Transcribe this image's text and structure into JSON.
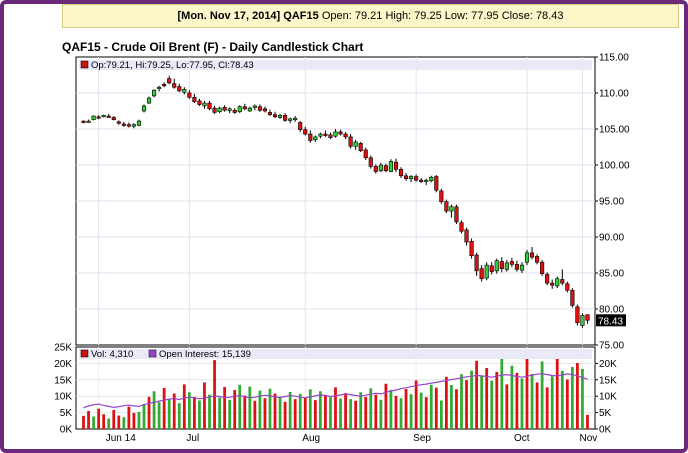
{
  "header": {
    "date": "[Mon. Nov 17, 2014]",
    "symbol": "QAF15",
    "open_label": "Open:",
    "open": "79.21",
    "high_label": "High:",
    "high": "79.25",
    "low_label": "Low:",
    "low": "77.95",
    "close_label": "Close:",
    "close": "78.43"
  },
  "chart_data": [
    {
      "type": "candlestick",
      "title": "QAF15 - Crude Oil Brent (F) - Daily Candlestick Chart",
      "legend": "Op:79.21, Hi:79.25, Lo:77.95, Cl:78.43",
      "last_price_label": "78.43",
      "ylim": [
        75,
        115
      ],
      "y_ticks": [
        "115.00",
        "110.00",
        "105.00",
        "100.00",
        "95.00",
        "90.00",
        "85.00",
        "80.00",
        "75.00"
      ],
      "x_tick_labels": [
        "Jun 14",
        "Jul",
        "Aug",
        "Sep",
        "Oct",
        "Nov"
      ],
      "colors": {
        "up": "#33cc33",
        "down": "#dd1111"
      },
      "ohlc": [
        [
          106.1,
          106.2,
          105.8,
          106.0
        ],
        [
          106.0,
          106.3,
          105.9,
          106.1
        ],
        [
          106.3,
          106.9,
          106.2,
          106.8
        ],
        [
          106.7,
          106.9,
          106.4,
          106.5
        ],
        [
          106.8,
          107.0,
          106.6,
          106.9
        ],
        [
          106.8,
          107.1,
          106.6,
          106.7
        ],
        [
          106.6,
          106.8,
          106.2,
          106.3
        ],
        [
          106.0,
          106.2,
          105.6,
          105.8
        ],
        [
          105.7,
          106.0,
          105.3,
          105.5
        ],
        [
          105.6,
          105.9,
          105.2,
          105.4
        ],
        [
          105.4,
          105.8,
          105.1,
          105.6
        ],
        [
          105.5,
          106.3,
          105.4,
          106.1
        ],
        [
          107.5,
          108.4,
          107.3,
          108.2
        ],
        [
          108.6,
          109.5,
          108.5,
          109.3
        ],
        [
          109.6,
          110.5,
          109.4,
          110.4
        ],
        [
          110.6,
          111.0,
          110.2,
          110.8
        ],
        [
          111.2,
          111.5,
          110.8,
          111.1
        ],
        [
          112.0,
          112.4,
          111.2,
          111.4
        ],
        [
          111.3,
          112.0,
          110.6,
          110.8
        ],
        [
          110.9,
          111.3,
          110.1,
          110.3
        ],
        [
          110.1,
          110.8,
          109.8,
          110.5
        ],
        [
          110.0,
          110.4,
          109.2,
          109.4
        ],
        [
          109.4,
          109.9,
          108.6,
          108.8
        ],
        [
          108.9,
          109.2,
          108.2,
          108.4
        ],
        [
          108.2,
          108.9,
          107.8,
          108.6
        ],
        [
          108.6,
          108.9,
          107.6,
          107.8
        ],
        [
          107.9,
          108.2,
          107.1,
          107.3
        ],
        [
          107.4,
          108.1,
          107.2,
          107.9
        ],
        [
          108.0,
          108.3,
          107.4,
          107.6
        ],
        [
          107.6,
          108.0,
          107.2,
          107.8
        ],
        [
          107.6,
          107.9,
          107.1,
          107.3
        ],
        [
          107.4,
          108.3,
          107.2,
          108.1
        ],
        [
          108.1,
          108.5,
          107.6,
          107.8
        ],
        [
          107.5,
          108.1,
          107.4,
          107.9
        ],
        [
          108.0,
          108.4,
          107.6,
          108.2
        ],
        [
          108.1,
          108.4,
          107.4,
          107.6
        ],
        [
          107.8,
          108.1,
          107.3,
          107.5
        ],
        [
          107.3,
          107.7,
          106.8,
          107.0
        ],
        [
          107.0,
          107.4,
          106.5,
          106.7
        ],
        [
          106.6,
          107.1,
          106.4,
          106.9
        ],
        [
          106.9,
          107.2,
          106.0,
          106.2
        ],
        [
          106.2,
          106.6,
          105.8,
          106.4
        ],
        [
          106.3,
          106.8,
          106.0,
          106.5
        ],
        [
          105.9,
          106.1,
          104.6,
          104.9
        ],
        [
          104.9,
          105.3,
          104.1,
          104.3
        ],
        [
          104.3,
          104.8,
          103.1,
          103.4
        ],
        [
          103.5,
          104.1,
          103.2,
          103.9
        ],
        [
          104.0,
          104.5,
          103.7,
          104.3
        ],
        [
          104.3,
          104.8,
          103.9,
          104.1
        ],
        [
          104.2,
          104.5,
          103.6,
          103.8
        ],
        [
          104.0,
          105.0,
          103.8,
          104.6
        ],
        [
          104.6,
          104.9,
          104.1,
          104.3
        ],
        [
          104.3,
          104.6,
          103.6,
          103.9
        ],
        [
          103.9,
          104.3,
          102.3,
          102.6
        ],
        [
          102.6,
          103.5,
          102.1,
          103.2
        ],
        [
          103.0,
          103.2,
          101.8,
          102.0
        ],
        [
          102.1,
          102.4,
          100.7,
          101.0
        ],
        [
          101.0,
          101.3,
          99.5,
          99.8
        ],
        [
          99.8,
          100.1,
          98.8,
          99.1
        ],
        [
          99.2,
          100.3,
          99.0,
          100.0
        ],
        [
          99.9,
          100.2,
          99.0,
          99.2
        ],
        [
          99.1,
          100.8,
          99.0,
          100.5
        ],
        [
          100.4,
          100.9,
          99.0,
          99.4
        ],
        [
          99.4,
          99.7,
          98.2,
          98.5
        ],
        [
          98.5,
          98.9,
          97.8,
          98.1
        ],
        [
          98.1,
          98.6,
          97.6,
          98.4
        ],
        [
          98.4,
          98.7,
          97.7,
          97.9
        ],
        [
          97.9,
          98.2,
          97.5,
          97.7
        ],
        [
          97.7,
          98.1,
          97.2,
          97.9
        ],
        [
          97.8,
          98.5,
          97.6,
          98.3
        ],
        [
          98.4,
          98.6,
          96.2,
          96.5
        ],
        [
          96.4,
          96.7,
          94.6,
          94.9
        ],
        [
          94.9,
          95.2,
          93.3,
          93.6
        ],
        [
          93.6,
          94.5,
          92.7,
          94.2
        ],
        [
          94.2,
          94.5,
          91.8,
          92.1
        ],
        [
          92.0,
          92.3,
          90.5,
          90.8
        ],
        [
          91.0,
          91.3,
          88.8,
          89.3
        ],
        [
          89.4,
          89.8,
          87.0,
          87.4
        ],
        [
          87.5,
          87.8,
          84.6,
          85.3
        ],
        [
          85.6,
          86.1,
          83.8,
          84.2
        ],
        [
          84.3,
          86.5,
          84.0,
          86.1
        ],
        [
          86.0,
          86.5,
          84.8,
          85.2
        ],
        [
          85.3,
          87.0,
          84.9,
          86.7
        ],
        [
          86.6,
          87.2,
          85.1,
          85.6
        ],
        [
          85.5,
          86.8,
          85.2,
          86.4
        ],
        [
          86.6,
          87.1,
          85.8,
          86.2
        ],
        [
          86.2,
          86.7,
          85.2,
          85.5
        ],
        [
          85.4,
          86.5,
          85.0,
          86.1
        ],
        [
          86.5,
          88.2,
          86.1,
          87.8
        ],
        [
          87.8,
          88.6,
          86.9,
          87.2
        ],
        [
          87.3,
          87.6,
          86.2,
          86.5
        ],
        [
          86.5,
          86.8,
          84.6,
          84.9
        ],
        [
          84.8,
          85.1,
          83.3,
          83.6
        ],
        [
          83.6,
          84.1,
          82.8,
          83.3
        ],
        [
          83.2,
          84.5,
          82.9,
          84.2
        ],
        [
          84.1,
          85.5,
          83.3,
          83.6
        ],
        [
          83.5,
          83.8,
          82.3,
          82.6
        ],
        [
          82.6,
          82.9,
          80.2,
          80.5
        ],
        [
          80.3,
          80.6,
          77.7,
          78.1
        ],
        [
          77.7,
          79.4,
          77.4,
          79.1
        ],
        [
          79.21,
          79.25,
          77.95,
          78.43
        ]
      ]
    },
    {
      "type": "bar",
      "legend_volume": "Vol: 4,310",
      "legend_oi": "Open Interest: 15,139",
      "ylim": [
        0,
        25000
      ],
      "y_ticks_left": [
        "25K",
        "20K",
        "15K",
        "10K",
        "5K",
        "0K"
      ],
      "y_ticks_right": [
        "20K",
        "15K",
        "10K",
        "5K",
        "0K"
      ],
      "colors": {
        "up": "#33aa33",
        "down": "#dd1111",
        "even": "#2233cc",
        "open_interest": "#9944cc"
      },
      "volume": [
        4000,
        5500,
        3800,
        6200,
        4500,
        3200,
        5800,
        4100,
        3600,
        6800,
        4900,
        5200,
        7600,
        9800,
        11500,
        8200,
        12500,
        9300,
        10800,
        7900,
        13600,
        11200,
        9800,
        8700,
        14200,
        10500,
        21000,
        9600,
        12800,
        8900,
        11900,
        13500,
        10200,
        12900,
        8600,
        11700,
        9400,
        12300,
        10800,
        9900,
        8300,
        11300,
        9100,
        10700,
        9600,
        12100,
        8800,
        11500,
        10400,
        9700,
        12700,
        9300,
        10900,
        9100,
        8600,
        11200,
        9800,
        12400,
        10500,
        8900,
        13800,
        11900,
        10100,
        9400,
        12200,
        10600,
        14800,
        11100,
        9700,
        13500,
        12600,
        8700,
        15900,
        13400,
        12100,
        16700,
        14900,
        17800,
        20800,
        16300,
        18600,
        14700,
        17400,
        22000,
        13600,
        19300,
        17100,
        15400,
        22000,
        16800,
        14200,
        20600,
        12700,
        16100,
        21500,
        17700,
        15100,
        18900,
        20100,
        18300,
        4310
      ],
      "volume_tags": [
        "d",
        "d",
        "u",
        "d",
        "d",
        "u",
        "d",
        "d",
        "u",
        "d",
        "d",
        "u",
        "u",
        "d",
        "u",
        "u",
        "d",
        "u",
        "d",
        "u",
        "d",
        "u",
        "d",
        "u",
        "d",
        "u",
        "d",
        "u",
        "d",
        "u",
        "d",
        "u",
        "d",
        "u",
        "d",
        "u",
        "d",
        "u",
        "d",
        "u",
        "d",
        "u",
        "d",
        "u",
        "d",
        "u",
        "d",
        "u",
        "d",
        "u",
        "d",
        "u",
        "d",
        "u",
        "d",
        "u",
        "d",
        "u",
        "d",
        "u",
        "d",
        "u",
        "d",
        "u",
        "d",
        "u",
        "d",
        "u",
        "d",
        "u",
        "d",
        "u",
        "d",
        "u",
        "d",
        "u",
        "d",
        "u",
        "d",
        "u",
        "d",
        "u",
        "d",
        "u",
        "d",
        "u",
        "d",
        "u",
        "d",
        "u",
        "d",
        "u",
        "d",
        "u",
        "d",
        "u",
        "d",
        "u",
        "d",
        "u",
        "d"
      ],
      "open_interest": [
        6500,
        7000,
        7400,
        7600,
        7200,
        6900,
        6600,
        6800,
        7100,
        7300,
        7000,
        6900,
        7400,
        7800,
        8100,
        8500,
        8800,
        9100,
        9300,
        9000,
        9400,
        9700,
        9500,
        9200,
        9400,
        9800,
        10100,
        9900,
        9600,
        9700,
        9900,
        10200,
        9800,
        9500,
        9700,
        10000,
        10300,
        10100,
        9800,
        9600,
        9900,
        10200,
        10000,
        9700,
        9500,
        9800,
        10100,
        10400,
        10200,
        9900,
        10100,
        10400,
        10700,
        10500,
        10200,
        10000,
        10300,
        10600,
        10900,
        10700,
        11200,
        11600,
        11900,
        12300,
        12600,
        12900,
        13200,
        13500,
        13700,
        14000,
        14200,
        14500,
        14800,
        15100,
        15300,
        15600,
        15900,
        16100,
        16300,
        16200,
        16000,
        15800,
        16100,
        16400,
        16600,
        16300,
        16000,
        15800,
        16100,
        16400,
        16700,
        16900,
        16600,
        16300,
        16200,
        16500,
        16800,
        16600,
        16200,
        15700,
        15139
      ],
      "x_tick_labels": [
        "Jun 14",
        "Jul",
        "Aug",
        "Sep",
        "Oct",
        "Nov"
      ]
    }
  ]
}
